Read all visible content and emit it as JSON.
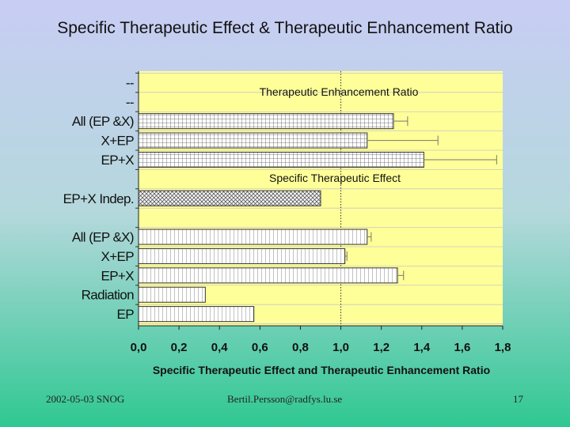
{
  "slide": {
    "title": "Specific Therapeutic Effect & Therapeutic Enhancement Ratio",
    "footer_date": "2002-05-03 SNOG",
    "footer_email": "Bertil.Persson@radfys.lu.se",
    "footer_page": "17"
  },
  "chart_data": {
    "type": "bar",
    "orientation": "horizontal",
    "xlabel": "Specific Therapeutic Effect and Therapeutic Enhancement Ratio",
    "xlim": [
      0,
      1.8
    ],
    "xticks": [
      "0,0",
      "0,2",
      "0,4",
      "0,6",
      "0,8",
      "1,0",
      "1,2",
      "1,4",
      "1,6",
      "1,8"
    ],
    "reference_line_x": 1.0,
    "grid": true,
    "annotations": [
      "Therapeutic Enhancement Ratio",
      "Specific Therapeutic Effect"
    ],
    "colors": {
      "plot_bg": "#ffff99",
      "bar_fill": "#ffffff",
      "bar_stroke": "#333333",
      "grid": "#c8c8c8"
    },
    "rows": [
      {
        "label": "--",
        "value": null,
        "error": null,
        "pattern": "none"
      },
      {
        "label": "--",
        "value": null,
        "error": null,
        "pattern": "none"
      },
      {
        "label": "All (EP &X)",
        "value": 1.26,
        "error": 0.07,
        "pattern": "grid"
      },
      {
        "label": "X+EP",
        "value": 1.13,
        "error": 0.35,
        "pattern": "grid"
      },
      {
        "label": "EP+X",
        "value": 1.41,
        "error": 0.36,
        "pattern": "grid"
      },
      {
        "label": "",
        "value": null,
        "error": null,
        "pattern": "none"
      },
      {
        "label": "EP+X Indep.",
        "value": 0.9,
        "error": null,
        "pattern": "cross"
      },
      {
        "label": "",
        "value": null,
        "error": null,
        "pattern": "none"
      },
      {
        "label": "All (EP &X)",
        "value": 1.13,
        "error": 0.02,
        "pattern": "vlines"
      },
      {
        "label": "X+EP",
        "value": 1.02,
        "error": 0.01,
        "pattern": "vlines"
      },
      {
        "label": "EP+X",
        "value": 1.28,
        "error": 0.03,
        "pattern": "vlines"
      },
      {
        "label": "Radiation",
        "value": 0.33,
        "error": null,
        "pattern": "vlines"
      },
      {
        "label": "EP",
        "value": 0.57,
        "error": null,
        "pattern": "vlines"
      }
    ]
  }
}
